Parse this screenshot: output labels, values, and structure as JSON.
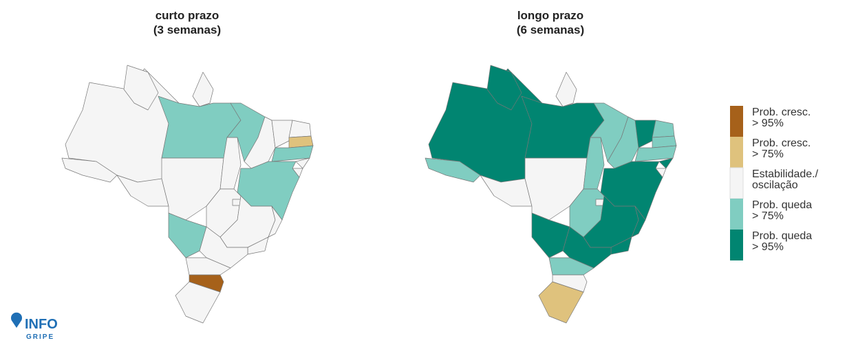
{
  "maps": [
    {
      "title": [
        "curto prazo",
        "(3 semanas)"
      ],
      "region_colors": [
        "#f5f5f5",
        "#f5f5f5",
        "#f5f5f5",
        "#80cdc1",
        "#f5f5f5",
        "#f5f5f5",
        "#f5f5f5",
        "#f5f5f5",
        "#80cdc1",
        "#f5f5f5",
        "#f5f5f5",
        "#f5f5f5",
        "#dfc27d",
        "#80cdc1",
        "#f5f5f5",
        "#f5f5f5",
        "#80cdc1",
        "#f5f5f5",
        "#f5f5f5",
        "#80cdc1",
        "#f5f5f5",
        "#f5f5f5",
        "#f5f5f5",
        "#f5f5f5",
        "#f5f5f5",
        "#a6611a",
        "#f5f5f5"
      ]
    },
    {
      "title": [
        "longo prazo",
        "(6 semanas)"
      ],
      "region_colors": [
        "#018571",
        "#018571",
        "#f5f5f5",
        "#018571",
        "#80cdc1",
        "#f5f5f5",
        "#f5f5f5",
        "#80cdc1",
        "#80cdc1",
        "#80cdc1",
        "#018571",
        "#80cdc1",
        "#80cdc1",
        "#80cdc1",
        "#018571",
        "#f5f5f5",
        "#018571",
        "#80cdc1",
        "#f5f5f5",
        "#018571",
        "#018571",
        "#018571",
        "#018571",
        "#018571",
        "#80cdc1",
        "#f5f5f5",
        "#dfc27d"
      ]
    }
  ],
  "legend": [
    {
      "label": [
        "Prob. cresc.",
        "> 95%"
      ],
      "color": "#a6611a"
    },
    {
      "label": [
        "Prob. cresc.",
        "> 75%"
      ],
      "color": "#dfc27d"
    },
    {
      "label": [
        "Estabilidade./",
        "oscilação"
      ],
      "color": "#f5f5f5"
    },
    {
      "label": [
        "Prob. queda",
        "> 75%"
      ],
      "color": "#80cdc1"
    },
    {
      "label": [
        "Prob. queda",
        "> 95%"
      ],
      "color": "#018571"
    }
  ],
  "logo": {
    "line1": "INFO",
    "line2": "GRIPE"
  }
}
